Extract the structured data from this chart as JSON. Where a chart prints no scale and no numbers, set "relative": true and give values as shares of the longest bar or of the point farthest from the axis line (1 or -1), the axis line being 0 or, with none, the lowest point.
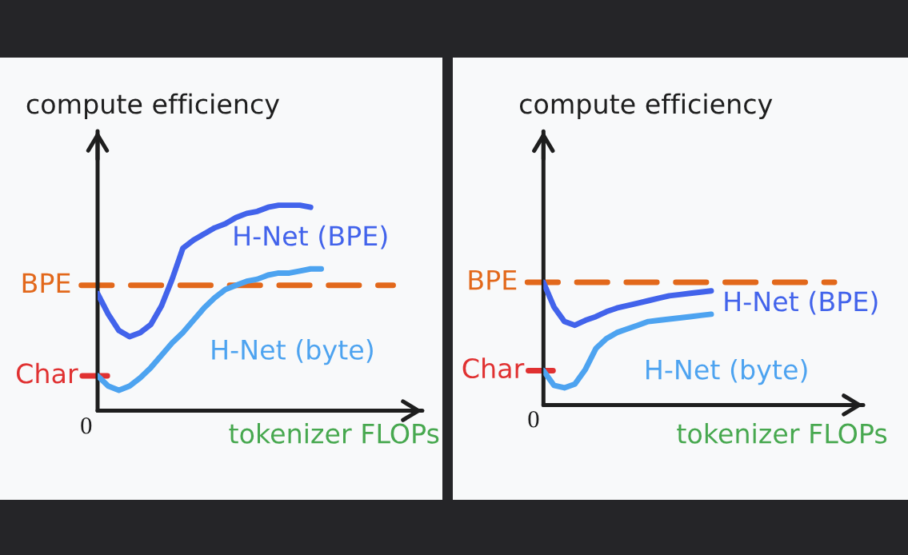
{
  "chart_data": [
    {
      "type": "line",
      "ylabel": "compute efficiency",
      "xlabel": "tokenizer FLOPs",
      "relative": true,
      "categories": [
        null,
        null,
        null,
        null,
        null,
        null,
        null,
        null,
        null,
        null,
        null,
        null,
        null,
        null,
        null,
        null,
        null,
        null,
        null,
        null,
        null,
        null,
        null,
        null,
        null,
        null,
        null,
        null,
        null,
        null,
        null
      ],
      "series": [
        {
          "name": "H-Net (BPE)",
          "color": "#4263eb",
          "values": [
            0.57,
            0.47,
            0.39,
            0.36,
            0.38,
            0.42,
            0.51,
            0.64,
            0.79,
            0.83,
            0.86,
            0.89,
            0.91,
            0.94,
            0.96,
            0.97,
            0.99,
            1.0,
            1.0,
            1.0,
            0.99,
            null,
            null,
            null,
            null,
            null,
            null,
            null,
            null,
            null,
            null
          ]
        },
        {
          "name": "H-Net (byte)",
          "color": "#4da3f0",
          "values": [
            0.17,
            0.12,
            0.1,
            0.12,
            0.16,
            0.21,
            0.27,
            0.33,
            0.38,
            0.44,
            0.5,
            0.55,
            0.59,
            0.61,
            0.63,
            0.64,
            0.66,
            0.67,
            0.67,
            0.68,
            0.69,
            0.69,
            null,
            null,
            null,
            null,
            null,
            null,
            null,
            null,
            null
          ]
        }
      ],
      "ref_lines": [
        {
          "axis": "y",
          "value": 0.61,
          "label": "BPE",
          "color": "#e2681b",
          "line_style": "dashed"
        },
        {
          "axis": "y",
          "value": 0.17,
          "label": "Char",
          "color": "#e03131",
          "line_style": "solid"
        }
      ],
      "annotations": [
        "0"
      ]
    },
    {
      "type": "line",
      "ylabel": "compute efficiency",
      "xlabel": "tokenizer FLOPs",
      "relative": true,
      "categories": [
        null,
        null,
        null,
        null,
        null,
        null,
        null,
        null,
        null,
        null,
        null,
        null,
        null,
        null,
        null,
        null,
        null,
        null,
        null,
        null,
        null,
        null,
        null,
        null,
        null,
        null,
        null,
        null,
        null,
        null,
        null
      ],
      "series": [
        {
          "name": "H-Net (BPE)",
          "color": "#4263eb",
          "values": [
            1.0,
            0.8,
            0.68,
            0.65,
            0.69,
            0.72,
            0.76,
            0.79,
            0.81,
            0.83,
            0.85,
            0.87,
            0.89,
            0.9,
            0.91,
            0.92,
            0.93,
            null,
            null,
            null,
            null,
            null,
            null,
            null,
            null,
            null,
            null,
            null,
            null,
            null,
            null
          ]
        },
        {
          "name": "H-Net (byte)",
          "color": "#4da3f0",
          "values": [
            0.28,
            0.16,
            0.14,
            0.17,
            0.29,
            0.46,
            0.54,
            0.59,
            0.62,
            0.65,
            0.68,
            0.69,
            0.7,
            0.71,
            0.72,
            0.73,
            0.74,
            null,
            null,
            null,
            null,
            null,
            null,
            null,
            null,
            null,
            null,
            null,
            null,
            null,
            null
          ]
        }
      ],
      "ref_lines": [
        {
          "axis": "y",
          "value": 1.0,
          "label": "BPE",
          "color": "#e2681b",
          "line_style": "dashed"
        },
        {
          "axis": "y",
          "value": 0.28,
          "label": "Char",
          "color": "#e03131",
          "line_style": "solid"
        }
      ],
      "annotations": [
        "0"
      ]
    }
  ]
}
